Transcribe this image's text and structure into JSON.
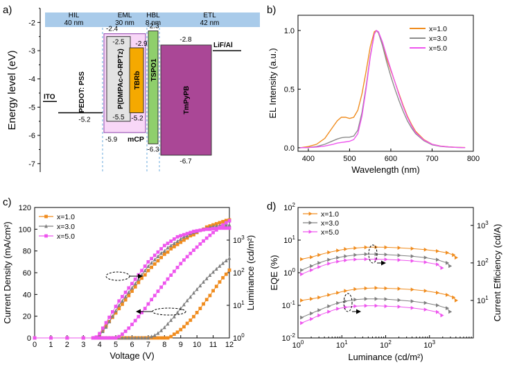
{
  "panel_labels": [
    "a)",
    "b)",
    "c)",
    "d)"
  ],
  "chart_data": [
    {
      "panel": "a",
      "type": "energy-level-diagram",
      "ylabel": "Energy level (eV)",
      "ylim": [
        -7.3,
        -1.5
      ],
      "yticks": [
        -2,
        -3,
        -4,
        -5,
        -6,
        -7
      ],
      "regions": [
        {
          "name": "HIL",
          "thickness": "40 nm"
        },
        {
          "name": "EML",
          "thickness": "30 nm"
        },
        {
          "name": "HBL",
          "thickness": "8 nm"
        },
        {
          "name": "ETL",
          "thickness": "42 nm"
        }
      ],
      "levels": [
        {
          "name": "ITO",
          "work_function": -4.8
        },
        {
          "name": "PEDOT: PSS",
          "work_function": -5.2,
          "label": "-5.2"
        },
        {
          "name": "mCP",
          "lumo": -2.4,
          "homo": -5.9,
          "lumo_label": "-2.4",
          "homo_label": "-5.9",
          "color": "#f8d7f7"
        },
        {
          "name": "P(DMPAc-O-RPTz)",
          "lumo": -2.5,
          "homo": -5.5,
          "lumo_label": "-2.5",
          "homo_label": "-5.5",
          "color": "#e3e3e3"
        },
        {
          "name": "TBRb",
          "lumo": -2.9,
          "homo": -5.2,
          "lumo_label": "-2.9",
          "homo_label": "-5.2",
          "color": "#f5a900"
        },
        {
          "name": "TSPO1",
          "lumo": -2.3,
          "homo": -6.3,
          "lumo_label": "-2.3",
          "homo_label": "-6.3",
          "color": "#8fcf6c"
        },
        {
          "name": "TmPyPB",
          "lumo": -2.8,
          "homo": -6.7,
          "lumo_label": "-2.8",
          "homo_label": "-6.7",
          "color": "#aa4796"
        },
        {
          "name": "LiF/Al",
          "work_function": -3.0
        }
      ]
    },
    {
      "panel": "b",
      "type": "line",
      "xlabel": "Wavelength (nm)",
      "ylabel": "EL Intensity (a.u.)",
      "xlim": [
        375,
        800
      ],
      "ylim": [
        -0.03,
        1.13
      ],
      "xticks": [
        400,
        500,
        600,
        700,
        800
      ],
      "yticks": [
        0.0,
        0.5,
        1.0
      ],
      "legend_position": "top-right",
      "series": [
        {
          "name": "x=1.0",
          "color": "#f08c1e",
          "x": [
            380,
            400,
            420,
            440,
            460,
            470,
            480,
            490,
            500,
            510,
            520,
            530,
            540,
            550,
            560,
            565,
            570,
            580,
            590,
            600,
            610,
            620,
            630,
            640,
            650,
            660,
            680,
            700,
            720,
            740,
            760,
            780
          ],
          "y": [
            0,
            0.01,
            0.03,
            0.08,
            0.18,
            0.23,
            0.26,
            0.26,
            0.25,
            0.26,
            0.32,
            0.46,
            0.65,
            0.86,
            0.99,
            1.0,
            0.98,
            0.88,
            0.76,
            0.66,
            0.56,
            0.46,
            0.36,
            0.27,
            0.2,
            0.14,
            0.07,
            0.03,
            0.015,
            0.008,
            0.004,
            0.002
          ]
        },
        {
          "name": "x=3.0",
          "color": "#8c8c8c",
          "x": [
            380,
            400,
            420,
            440,
            460,
            470,
            480,
            490,
            500,
            510,
            520,
            530,
            540,
            550,
            560,
            565,
            570,
            580,
            590,
            600,
            610,
            620,
            630,
            640,
            650,
            660,
            680,
            700,
            720,
            740,
            760,
            780
          ],
          "y": [
            0,
            0.003,
            0.01,
            0.03,
            0.06,
            0.075,
            0.085,
            0.09,
            0.09,
            0.1,
            0.15,
            0.3,
            0.52,
            0.78,
            0.97,
            1.0,
            0.98,
            0.87,
            0.73,
            0.61,
            0.5,
            0.4,
            0.31,
            0.23,
            0.17,
            0.12,
            0.06,
            0.025,
            0.012,
            0.006,
            0.003,
            0.001
          ]
        },
        {
          "name": "x=5.0",
          "color": "#ee55ee",
          "x": [
            380,
            400,
            420,
            440,
            460,
            470,
            480,
            490,
            500,
            510,
            520,
            530,
            540,
            550,
            560,
            565,
            570,
            580,
            590,
            600,
            610,
            620,
            630,
            640,
            650,
            660,
            680,
            700,
            720,
            740,
            760,
            780
          ],
          "y": [
            0,
            0.002,
            0.006,
            0.015,
            0.03,
            0.04,
            0.045,
            0.05,
            0.055,
            0.07,
            0.12,
            0.27,
            0.5,
            0.77,
            0.97,
            1.0,
            0.99,
            0.9,
            0.78,
            0.67,
            0.56,
            0.45,
            0.35,
            0.26,
            0.19,
            0.13,
            0.065,
            0.03,
            0.014,
            0.007,
            0.003,
            0.001
          ]
        }
      ]
    },
    {
      "panel": "c",
      "type": "line",
      "xlabel": "Voltage (V)",
      "ylabel": "Current Density (mA/cm²)",
      "ylabel_right": "Luminance (cd/m²)",
      "xlim": [
        0,
        12
      ],
      "ylim": [
        0,
        120
      ],
      "ylim_right_log": [
        1,
        10000
      ],
      "xticks": [
        0,
        1,
        2,
        3,
        4,
        5,
        6,
        7,
        8,
        9,
        10,
        11,
        12
      ],
      "yticks": [
        0,
        20,
        40,
        60,
        80,
        100,
        120
      ],
      "yticks_right": [
        "10^0",
        "10^1",
        "10^2",
        "10^3"
      ],
      "legend_position": "top-left",
      "series": [
        {
          "name": "x=1.0",
          "color": "#f08c1e",
          "marker": "square",
          "x": [
            0,
            1,
            2,
            3,
            3.6,
            3.8,
            4,
            4.2,
            4.4,
            4.6,
            4.8,
            5,
            5.2,
            5.4,
            5.6,
            5.8,
            6,
            6.2,
            6.4,
            6.6,
            6.8,
            7,
            7.2,
            7.4,
            7.6,
            7.8,
            8,
            8.2,
            8.4,
            8.6,
            8.8,
            9,
            9.2,
            9.4,
            9.6,
            9.8,
            10,
            10.2,
            10.4,
            10.6,
            10.8,
            11,
            11.2,
            11.4,
            11.6,
            11.8,
            12
          ],
          "current_density": [
            0,
            0,
            0,
            0,
            0,
            0.6,
            3,
            7,
            11,
            15,
            19,
            23,
            27,
            31,
            35,
            39,
            43,
            47,
            51,
            55,
            58,
            62,
            65,
            68,
            71,
            74,
            77,
            79,
            82,
            84,
            86,
            88,
            90,
            92,
            94,
            95,
            97,
            99,
            100,
            102,
            103,
            104,
            105,
            106,
            107,
            108,
            108.5
          ],
          "luminance": [
            1,
            1,
            1,
            1,
            1,
            1,
            1,
            1,
            1,
            1,
            1,
            1,
            1,
            1,
            1,
            1,
            1,
            1,
            1,
            1,
            1,
            1,
            1,
            1,
            1,
            1,
            1,
            1,
            1.1,
            1.3,
            1.5,
            1.8,
            2.2,
            2.8,
            3.5,
            4.5,
            6,
            8,
            11,
            15,
            20,
            28,
            38,
            52,
            70,
            90,
            120
          ]
        },
        {
          "name": "x=3.0",
          "color": "#7f7f7f",
          "marker": "triangle",
          "x": [
            0,
            1,
            2,
            3,
            3.6,
            3.8,
            4,
            4.2,
            4.4,
            4.6,
            4.8,
            5,
            5.2,
            5.4,
            5.6,
            5.8,
            6,
            6.2,
            6.4,
            6.6,
            6.8,
            7,
            7.2,
            7.4,
            7.6,
            7.8,
            8,
            8.2,
            8.4,
            8.6,
            8.8,
            9,
            9.2,
            9.4,
            9.6,
            9.8,
            10,
            10.2,
            10.4,
            10.6,
            10.8,
            11,
            11.2,
            11.4,
            11.6,
            11.8,
            12
          ],
          "current_density": [
            0,
            0,
            0,
            0,
            0,
            0.4,
            2.5,
            6,
            10,
            15,
            20,
            25,
            30,
            34,
            38,
            42,
            46,
            50,
            54,
            58,
            62,
            66,
            69,
            72,
            75,
            78,
            80,
            83,
            85,
            87,
            89,
            91,
            93,
            94,
            96,
            97,
            98,
            99,
            100,
            101,
            102,
            102.5,
            103,
            103.5,
            104,
            104,
            104
          ],
          "luminance": [
            1,
            1,
            1,
            1,
            1,
            1,
            1,
            1,
            1,
            1,
            1,
            1,
            1,
            1,
            1,
            1,
            1,
            1,
            1,
            1,
            1,
            1,
            1.1,
            1.2,
            1.4,
            1.7,
            2.1,
            2.7,
            3.5,
            4.5,
            6,
            8,
            10.5,
            14,
            18,
            24,
            31,
            40,
            52,
            66,
            84,
            105,
            130,
            160,
            195,
            235,
            280
          ]
        },
        {
          "name": "x=5.0",
          "color": "#ee55ee",
          "marker": "square",
          "x": [
            0,
            1,
            2,
            3,
            3.6,
            3.8,
            4,
            4.2,
            4.4,
            4.6,
            4.8,
            5,
            5.2,
            5.4,
            5.6,
            5.8,
            6,
            6.2,
            6.4,
            6.6,
            6.8,
            7,
            7.2,
            7.4,
            7.6,
            7.8,
            8,
            8.2,
            8.4,
            8.6,
            8.8,
            9,
            9.2,
            9.4,
            9.6,
            9.8,
            10,
            10.2,
            10.4,
            10.6,
            10.8,
            11,
            11.2,
            11.4,
            11.6,
            11.8,
            12
          ],
          "current_density": [
            0,
            0,
            0,
            0,
            0,
            0.8,
            4,
            9,
            14,
            19,
            24,
            29,
            34,
            38,
            42,
            46,
            50,
            54,
            58,
            62,
            66,
            70,
            73,
            76,
            79,
            82,
            85,
            87,
            89,
            91,
            93,
            94,
            95,
            96,
            97,
            98,
            98.5,
            99,
            99.5,
            100,
            100,
            100.5,
            100.5,
            101,
            101,
            101,
            101
          ],
          "luminance": [
            1,
            1,
            1,
            1,
            1,
            1,
            1,
            1,
            1,
            1,
            1,
            1,
            1.1,
            1.3,
            1.6,
            2,
            2.6,
            3.4,
            4.5,
            6,
            8,
            11,
            15,
            20,
            27,
            36,
            48,
            64,
            84,
            110,
            145,
            190,
            245,
            310,
            390,
            490,
            610,
            760,
            940,
            1150,
            1400,
            1700,
            2050,
            2450,
            2900,
            3400,
            3900
          ]
        }
      ],
      "annotations": [
        "current density curves → left axis",
        "luminance curves → right axis"
      ]
    },
    {
      "panel": "d",
      "type": "line",
      "xlabel": "Luminance (cd/m²)",
      "ylabel": "EQE (%)",
      "ylabel_right": "Current Efficiency (cd/A)",
      "xscale": "log",
      "yscale": "log",
      "xlim": [
        1,
        10000
      ],
      "ylim": [
        0.01,
        100
      ],
      "ylim_right_log": [
        1,
        3000
      ],
      "xticks": [
        "10^0",
        "10^1",
        "10^2",
        "10^3"
      ],
      "yticks": [
        "10^-2",
        "10^-1",
        "10^0",
        "10^1",
        "10^2"
      ],
      "yticks_right": [
        "10^1",
        "10^2",
        "10^3"
      ],
      "legend_position": "top-left",
      "series": [
        {
          "name": "x=1.0",
          "color": "#f08c1e",
          "marker": "triangle-right",
          "luminance": [
            1.2,
            2,
            3,
            5,
            8,
            12,
            20,
            35,
            60,
            100,
            200,
            400,
            800,
            1500,
            2500,
            3500,
            4000
          ],
          "eqe": [
            2.6,
            3.0,
            3.5,
            4.2,
            4.8,
            5.3,
            5.7,
            6.0,
            6.1,
            6.0,
            5.8,
            5.5,
            5.1,
            4.6,
            4.1,
            3.5,
            2.9
          ],
          "current_efficiency": [
            10,
            11,
            12,
            14,
            16,
            18,
            20,
            21,
            21.5,
            21,
            20.5,
            19.5,
            18,
            16,
            14,
            12,
            10
          ]
        },
        {
          "name": "x=3.0",
          "color": "#7f7f7f",
          "marker": "triangle-right",
          "luminance": [
            1.2,
            2,
            3,
            5,
            8,
            12,
            20,
            35,
            60,
            100,
            200,
            400,
            800,
            1500,
            2500,
            2900
          ],
          "eqe": [
            1.2,
            1.6,
            2.0,
            2.5,
            2.9,
            3.2,
            3.5,
            3.7,
            3.7,
            3.6,
            3.4,
            3.2,
            2.9,
            2.5,
            2.0,
            1.6
          ],
          "current_efficiency": [
            3.5,
            4.5,
            5.5,
            7,
            8.5,
            9.5,
            10.5,
            11,
            11,
            10.8,
            10.2,
            9.5,
            8.6,
            7.4,
            6.2,
            5
          ]
        },
        {
          "name": "x=5.0",
          "color": "#ee55ee",
          "marker": "triangle-right",
          "luminance": [
            1.2,
            2,
            3,
            5,
            8,
            12,
            20,
            35,
            60,
            100,
            200,
            400,
            800,
            1500,
            1900
          ],
          "eqe": [
            0.9,
            1.2,
            1.5,
            1.9,
            2.2,
            2.4,
            2.55,
            2.6,
            2.6,
            2.55,
            2.45,
            2.3,
            2.1,
            1.8,
            1.4
          ],
          "current_efficiency": [
            2.5,
            3.2,
            4,
            5,
            6,
            6.6,
            7,
            7.2,
            7.2,
            7,
            6.8,
            6.3,
            5.7,
            4.9,
            4
          ]
        }
      ]
    }
  ]
}
